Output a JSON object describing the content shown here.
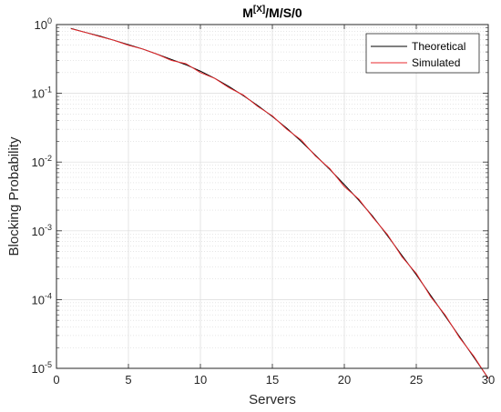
{
  "chart_data": {
    "type": "line",
    "title": "M/M/S/0",
    "title_superscript": "[X]",
    "xlabel": "Servers",
    "ylabel": "Blocking Probability",
    "xlim": [
      0,
      30
    ],
    "ylim": [
      1e-05,
      1
    ],
    "yscale": "log",
    "grid": true,
    "minor_grid": true,
    "legend_position": "top-right",
    "x_ticks": [
      0,
      5,
      10,
      15,
      20,
      25,
      30
    ],
    "x_tick_labels": [
      "0",
      "5",
      "10",
      "15",
      "20",
      "25",
      "30"
    ],
    "y_ticks": [
      1,
      0.1,
      0.01,
      0.001,
      0.0001,
      1e-05
    ],
    "y_tick_base": [
      "10",
      "10",
      "10",
      "10",
      "10",
      "10"
    ],
    "y_tick_exponents": [
      "0",
      "-1",
      "-2",
      "-3",
      "-4",
      "-5"
    ],
    "x": [
      1,
      2,
      3,
      4,
      5,
      6,
      7,
      8,
      9,
      10,
      11,
      12,
      13,
      14,
      15,
      16,
      17,
      18,
      19,
      20,
      21,
      22,
      23,
      24,
      25,
      26,
      27,
      28,
      29,
      30
    ],
    "series": [
      {
        "name": "Theoretical",
        "color": "#000000",
        "values": [
          0.88,
          0.77,
          0.68,
          0.59,
          0.51,
          0.44,
          0.37,
          0.31,
          0.26,
          0.21,
          0.165,
          0.125,
          0.092,
          0.066,
          0.046,
          0.031,
          0.02,
          0.0125,
          0.0078,
          0.0047,
          0.0028,
          0.0016,
          0.00085,
          0.00044,
          0.00023,
          0.000115,
          5.8e-05,
          2.9e-05,
          1.45e-05,
          7.2e-06
        ]
      },
      {
        "name": "Simulated",
        "color": "#e8282c",
        "values": [
          0.87,
          0.77,
          0.67,
          0.59,
          0.5,
          0.44,
          0.37,
          0.3,
          0.27,
          0.2,
          0.165,
          0.12,
          0.094,
          0.064,
          0.047,
          0.03,
          0.021,
          0.0122,
          0.008,
          0.0044,
          0.0029,
          0.00155,
          0.00088,
          0.00042,
          0.00024,
          0.00011,
          6e-05,
          2.8e-05,
          1.5e-05,
          7.1e-06
        ]
      }
    ]
  }
}
